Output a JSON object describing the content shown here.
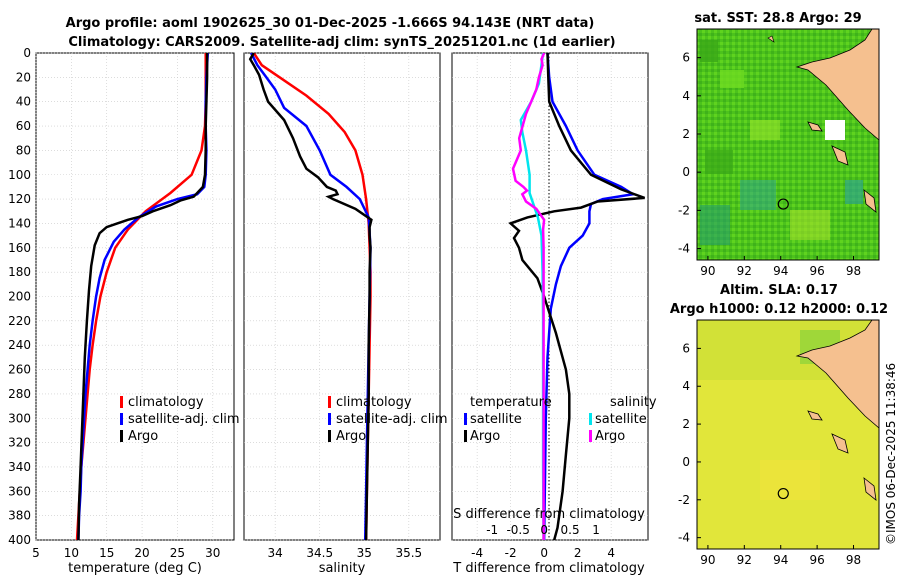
{
  "title": {
    "line1": "Argo profile: aoml 1902625_30 01-Dec-2025 -1.666S 94.143E (NRT data)",
    "line2": "Climatology: CARS2009. Satellite-adj clim: synTS_20251201.nc (1d earlier)"
  },
  "watermark": "©IMOS 06-Dec-2025 11:38:46",
  "colors": {
    "climatology": "#ff0000",
    "satellite": "#0000ff",
    "argo": "#000000",
    "sat_salinity": "#00e5ee",
    "argo_salinity": "#ff00ff",
    "land": "#f5c08f",
    "grid": "#bdbdbd"
  },
  "chart_data": [
    {
      "type": "line",
      "name": "temperature-profile",
      "xlabel": "temperature (deg C)",
      "ylabel": "",
      "xlim": [
        5,
        33
      ],
      "ylim": [
        0,
        400
      ],
      "xticks": [
        5,
        10,
        15,
        20,
        25,
        30
      ],
      "yticks": [
        0,
        20,
        40,
        60,
        80,
        100,
        120,
        140,
        160,
        180,
        200,
        220,
        240,
        260,
        280,
        300,
        320,
        340,
        360,
        380,
        400
      ],
      "legend": [
        "climatology",
        "satellite-adj. clim",
        "Argo"
      ],
      "series": [
        {
          "name": "climatology",
          "color": "#ff0000",
          "points": [
            [
              29,
              0
            ],
            [
              29,
              20
            ],
            [
              29,
              40
            ],
            [
              28.9,
              60
            ],
            [
              28.4,
              80
            ],
            [
              27,
              100
            ],
            [
              24,
              115
            ],
            [
              20.5,
              130
            ],
            [
              18,
              145
            ],
            [
              16.2,
              160
            ],
            [
              15,
              180
            ],
            [
              14.1,
              200
            ],
            [
              13.5,
              220
            ],
            [
              13,
              240
            ],
            [
              12.6,
              260
            ],
            [
              12.3,
              280
            ],
            [
              12,
              300
            ],
            [
              11.7,
              320
            ],
            [
              11.4,
              340
            ],
            [
              11.2,
              360
            ],
            [
              11,
              380
            ],
            [
              10.8,
              400
            ]
          ]
        },
        {
          "name": "satellite-adj. clim",
          "color": "#0000ff",
          "points": [
            [
              29.3,
              0
            ],
            [
              29.1,
              20
            ],
            [
              29,
              40
            ],
            [
              29,
              60
            ],
            [
              29.1,
              80
            ],
            [
              29,
              100
            ],
            [
              28.8,
              110
            ],
            [
              27.8,
              116
            ],
            [
              25,
              120
            ],
            [
              22,
              126
            ],
            [
              19.5,
              135
            ],
            [
              17.5,
              145
            ],
            [
              16,
              155
            ],
            [
              14.7,
              170
            ],
            [
              14,
              185
            ],
            [
              13.5,
              200
            ],
            [
              13,
              220
            ],
            [
              12.6,
              240
            ],
            [
              12.3,
              260
            ],
            [
              12,
              280
            ],
            [
              11.8,
              300
            ],
            [
              11.6,
              320
            ],
            [
              11.4,
              340
            ],
            [
              11.3,
              360
            ],
            [
              11.1,
              380
            ],
            [
              11,
              400
            ]
          ]
        },
        {
          "name": "Argo",
          "color": "#000000",
          "points": [
            [
              29.2,
              0
            ],
            [
              29.2,
              20
            ],
            [
              29.1,
              40
            ],
            [
              29,
              60
            ],
            [
              29,
              80
            ],
            [
              28.9,
              100
            ],
            [
              28.6,
              110
            ],
            [
              27.3,
              118
            ],
            [
              25.5,
              121
            ],
            [
              24,
              125
            ],
            [
              21.5,
              130
            ],
            [
              20,
              134
            ],
            [
              18,
              137
            ],
            [
              16.5,
              140
            ],
            [
              15,
              143
            ],
            [
              14,
              148
            ],
            [
              13.3,
              158
            ],
            [
              12.8,
              175
            ],
            [
              12.5,
              195
            ],
            [
              12.2,
              220
            ],
            [
              11.9,
              250
            ],
            [
              11.7,
              280
            ],
            [
              11.5,
              310
            ],
            [
              11.3,
              340
            ],
            [
              11.1,
              370
            ],
            [
              11,
              400
            ]
          ]
        }
      ]
    },
    {
      "type": "line",
      "name": "salinity-profile",
      "xlabel": "salinity",
      "ylabel": "",
      "xlim": [
        33.65,
        35.85
      ],
      "ylim": [
        0,
        400
      ],
      "xticks": [
        34,
        34.5,
        35,
        35.5
      ],
      "legend": [
        "climatology",
        "satellite-adj. clim",
        "Argo"
      ],
      "series": [
        {
          "name": "climatology",
          "color": "#ff0000",
          "points": [
            [
              33.76,
              0
            ],
            [
              33.85,
              10
            ],
            [
              34.05,
              20
            ],
            [
              34.35,
              35
            ],
            [
              34.6,
              50
            ],
            [
              34.78,
              65
            ],
            [
              34.9,
              80
            ],
            [
              34.98,
              100
            ],
            [
              35.02,
              120
            ],
            [
              35.05,
              140
            ],
            [
              35.06,
              160
            ],
            [
              35.07,
              180
            ],
            [
              35.07,
              200
            ],
            [
              35.06,
              240
            ],
            [
              35.05,
              280
            ],
            [
              35.04,
              320
            ],
            [
              35.03,
              360
            ],
            [
              35.02,
              400
            ]
          ]
        },
        {
          "name": "satellite-adj. clim",
          "color": "#0000ff",
          "points": [
            [
              33.73,
              0
            ],
            [
              33.8,
              10
            ],
            [
              33.9,
              20
            ],
            [
              34,
              30
            ],
            [
              34.1,
              45
            ],
            [
              34.35,
              60
            ],
            [
              34.5,
              80
            ],
            [
              34.62,
              100
            ],
            [
              34.8,
              110
            ],
            [
              34.95,
              120
            ],
            [
              35.05,
              135
            ],
            [
              35.07,
              160
            ],
            [
              35.06,
              200
            ],
            [
              35.05,
              240
            ],
            [
              35.04,
              280
            ],
            [
              35.03,
              320
            ],
            [
              35.02,
              360
            ],
            [
              35.01,
              400
            ]
          ]
        },
        {
          "name": "Argo",
          "color": "#000000",
          "points": [
            [
              33.76,
              0
            ],
            [
              33.72,
              5
            ],
            [
              33.76,
              10
            ],
            [
              33.82,
              18
            ],
            [
              33.87,
              30
            ],
            [
              33.92,
              40
            ],
            [
              34.1,
              55
            ],
            [
              34.2,
              70
            ],
            [
              34.28,
              85
            ],
            [
              34.35,
              95
            ],
            [
              34.48,
              102
            ],
            [
              34.58,
              110
            ],
            [
              34.68,
              113
            ],
            [
              34.7,
              116
            ],
            [
              34.6,
              118
            ],
            [
              34.65,
              120
            ],
            [
              34.9,
              128
            ],
            [
              35.08,
              137
            ],
            [
              35.06,
              143
            ],
            [
              35.06,
              150
            ],
            [
              35.07,
              160
            ],
            [
              35.06,
              180
            ],
            [
              35.06,
              200
            ],
            [
              35.05,
              240
            ],
            [
              35.05,
              280
            ],
            [
              35.04,
              320
            ],
            [
              35.03,
              360
            ],
            [
              35.02,
              400
            ]
          ]
        }
      ]
    },
    {
      "type": "line",
      "name": "difference-from-climatology",
      "xlabel": "T difference from climatology",
      "xlabel_top": "S difference from climatology",
      "xlim_T": [
        -5.5,
        6.2
      ],
      "ylim": [
        0,
        400
      ],
      "xticks_T": [
        -4,
        -2,
        0,
        2,
        4
      ],
      "xticks_S": [
        -1,
        -0.5,
        0,
        0.5,
        1
      ],
      "xticks_S_labels": [
        "-1",
        "-0.5",
        "0",
        "0.5",
        "1"
      ],
      "legend": {
        "temperature_heading": "temperature",
        "salinity_heading": "salinity",
        "temperature": [
          "satellite",
          "Argo"
        ],
        "salinity": [
          "satellite",
          "Argo"
        ]
      },
      "series": [
        {
          "name": "temperature satellite",
          "color": "#0000ff",
          "points": [
            [
              0.2,
              0
            ],
            [
              0.3,
              20
            ],
            [
              0.5,
              40
            ],
            [
              1.3,
              60
            ],
            [
              2,
              80
            ],
            [
              3,
              100
            ],
            [
              4.6,
              110
            ],
            [
              5.3,
              116
            ],
            [
              3.5,
              120
            ],
            [
              2.8,
              124
            ],
            [
              2.7,
              130
            ],
            [
              2.7,
              140
            ],
            [
              2.3,
              150
            ],
            [
              1.5,
              160
            ],
            [
              1,
              175
            ],
            [
              0.7,
              190
            ],
            [
              0.4,
              210
            ],
            [
              0.2,
              250
            ],
            [
              0.1,
              300
            ],
            [
              0.05,
              350
            ],
            [
              0,
              400
            ]
          ]
        },
        {
          "name": "temperature Argo",
          "color": "#000000",
          "points": [
            [
              0.2,
              0
            ],
            [
              0.25,
              20
            ],
            [
              0.3,
              40
            ],
            [
              0.9,
              60
            ],
            [
              1.6,
              80
            ],
            [
              2.8,
              100
            ],
            [
              4.6,
              112
            ],
            [
              6,
              119
            ],
            [
              3.2,
              122
            ],
            [
              2.2,
              127
            ],
            [
              0.6,
              130
            ],
            [
              -1,
              135
            ],
            [
              -1.4,
              137
            ],
            [
              -2,
              140
            ],
            [
              -1.5,
              146
            ],
            [
              -1.8,
              152
            ],
            [
              -1.5,
              160
            ],
            [
              -1.3,
              170
            ],
            [
              -0.4,
              185
            ],
            [
              0,
              200
            ],
            [
              0.7,
              230
            ],
            [
              1.3,
              260
            ],
            [
              1.5,
              280
            ],
            [
              1.5,
              300
            ],
            [
              1.3,
              330
            ],
            [
              1.1,
              360
            ],
            [
              0.8,
              390
            ],
            [
              0.6,
              400
            ]
          ]
        },
        {
          "name": "salinity satellite",
          "color": "#00e5ee",
          "points": [
            [
              -0.02,
              0
            ],
            [
              -0.1,
              25
            ],
            [
              -0.25,
              40
            ],
            [
              -0.45,
              55
            ],
            [
              -0.42,
              65
            ],
            [
              -0.35,
              80
            ],
            [
              -0.28,
              100
            ],
            [
              -0.28,
              115
            ],
            [
              -0.12,
              135
            ],
            [
              -0.05,
              150
            ],
            [
              -0.03,
              180
            ],
            [
              -0.02,
              220
            ],
            [
              -0.02,
              260
            ],
            [
              -0.02,
              300
            ],
            [
              -0.02,
              340
            ],
            [
              -0.01,
              400
            ]
          ]
        },
        {
          "name": "salinity Argo",
          "color": "#ff00ff",
          "points": [
            [
              0,
              0
            ],
            [
              -0.05,
              5
            ],
            [
              -0.03,
              10
            ],
            [
              -0.1,
              20
            ],
            [
              -0.15,
              30
            ],
            [
              -0.25,
              40
            ],
            [
              -0.35,
              50
            ],
            [
              -0.48,
              70
            ],
            [
              -0.45,
              80
            ],
            [
              -0.6,
              95
            ],
            [
              -0.55,
              105
            ],
            [
              -0.4,
              110
            ],
            [
              -0.33,
              113
            ],
            [
              -0.42,
              116
            ],
            [
              -0.35,
              122
            ],
            [
              -0.15,
              128
            ],
            [
              0,
              137
            ],
            [
              -0.02,
              145
            ],
            [
              -0.01,
              160
            ],
            [
              -0.01,
              200
            ],
            [
              -0.01,
              260
            ],
            [
              -0.01,
              320
            ],
            [
              -0.01,
              400
            ]
          ]
        }
      ]
    },
    {
      "type": "heatmap",
      "name": "sst-map",
      "title": "sat. SST: 28.8 Argo: 29",
      "xticks": [
        "90",
        "92",
        "94",
        "96",
        "98"
      ],
      "yticks": [
        "-4",
        "-2",
        "0",
        "2",
        "4",
        "6"
      ],
      "xlim": [
        89.4,
        99.4
      ],
      "ylim": [
        -4.6,
        7.5
      ],
      "argo_position": [
        94.14,
        -1.67
      ]
    },
    {
      "type": "heatmap",
      "name": "sla-map",
      "title": "Altim. SLA: 0.17",
      "subtitle": "Argo h1000: 0.12 h2000: 0.12",
      "xticks": [
        "90",
        "92",
        "94",
        "96",
        "98"
      ],
      "yticks": [
        "-4",
        "-2",
        "0",
        "2",
        "4",
        "6"
      ],
      "xlim": [
        89.4,
        99.4
      ],
      "ylim": [
        -4.6,
        7.5
      ],
      "argo_position": [
        94.14,
        -1.67
      ]
    }
  ]
}
